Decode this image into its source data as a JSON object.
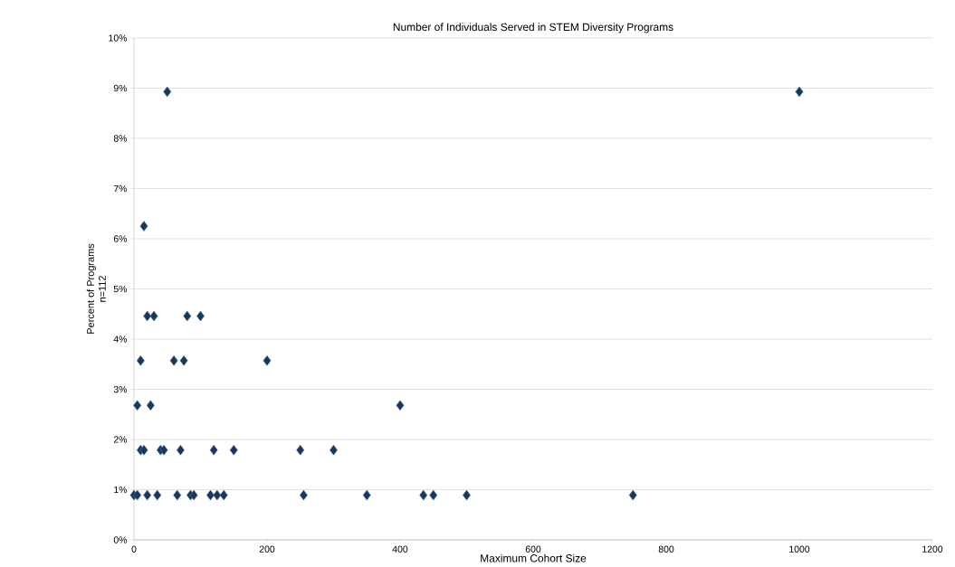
{
  "chart_data": {
    "type": "scatter",
    "title": "Number of Individuals Served in STEM Diversity Programs",
    "xlabel": "Maximum Cohort Size",
    "ylabel": "Percent of Programs\nn=112",
    "x": [
      0,
      5,
      20,
      35,
      65,
      85,
      90,
      115,
      125,
      135,
      255,
      350,
      435,
      450,
      500,
      750,
      10,
      15,
      40,
      45,
      70,
      120,
      150,
      250,
      300,
      5,
      25,
      400,
      10,
      60,
      75,
      200,
      20,
      30,
      80,
      100,
      15,
      50,
      1000
    ],
    "values": [
      0.89,
      0.89,
      0.89,
      0.89,
      0.89,
      0.89,
      0.89,
      0.89,
      0.89,
      0.89,
      0.89,
      0.89,
      0.89,
      0.89,
      0.89,
      0.89,
      1.79,
      1.79,
      1.79,
      1.79,
      1.79,
      1.79,
      1.79,
      1.79,
      1.79,
      2.68,
      2.68,
      2.68,
      3.57,
      3.57,
      3.57,
      3.57,
      4.46,
      4.46,
      4.46,
      4.46,
      6.25,
      8.93,
      8.93
    ],
    "color": "#17375e",
    "marker": "diamond",
    "grid": "y",
    "xlim": [
      0,
      1200
    ],
    "xticks": [
      0,
      200,
      400,
      600,
      800,
      1000,
      1200
    ],
    "ylim": [
      0,
      10
    ],
    "yticks": [
      {
        "value": 0,
        "label": "0%"
      },
      {
        "value": 1,
        "label": "1%"
      },
      {
        "value": 2,
        "label": "2%"
      },
      {
        "value": 3,
        "label": "3%"
      },
      {
        "value": 4,
        "label": "4%"
      },
      {
        "value": 5,
        "label": "5%"
      },
      {
        "value": 6,
        "label": "6%"
      },
      {
        "value": 7,
        "label": "7%"
      },
      {
        "value": 8,
        "label": "8%"
      },
      {
        "value": 9,
        "label": "9%"
      },
      {
        "value": 10,
        "label": "10%"
      }
    ]
  }
}
